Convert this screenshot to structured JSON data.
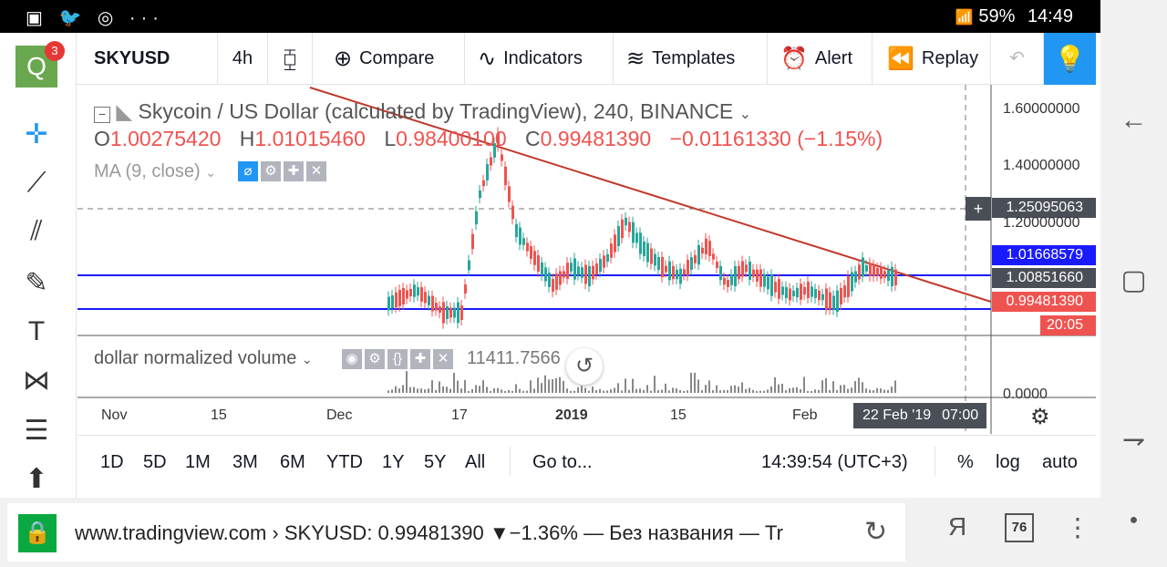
{
  "statusbar": {
    "left_icons": "▣ 🐦 ◎ ···",
    "battery": "59%",
    "time": "14:49",
    "signal": "📶"
  },
  "toolbar": {
    "symbol": "SKYUSD",
    "interval": "4h",
    "compare": "Compare",
    "indicators": "Indicators",
    "templates": "Templates",
    "alert": "Alert",
    "replay": "Replay"
  },
  "logo": {
    "letter": "Q",
    "badge": "3"
  },
  "legend": {
    "title": "Skycoin / US Dollar (calculated by TradingView), 240, BINANCE",
    "o_label": "O",
    "o": "1.00275420",
    "h_label": "H",
    "h": "1.01015460",
    "l_label": "L",
    "l": "0.98400100",
    "c_label": "C",
    "c": "0.99481390",
    "change": "−0.01161330 (−1.15%)",
    "ma": "MA (9, close)",
    "volume_name": "dollar normalized volume",
    "volume_value": "11411.7566"
  },
  "axis": {
    "y_ticks": [
      "1.60000000",
      "1.40000000",
      "1.20000000",
      "0.0000"
    ],
    "x_ticks": [
      "Nov",
      "15",
      "Dec",
      "17",
      "2019",
      "15",
      "Feb"
    ],
    "crosshair_price": "1.25095063",
    "price_blue": "1.01668579",
    "price_grey": "1.00851660",
    "price_red": "0.99481390",
    "countdown": "20:05",
    "crosshair_date": "22 Feb '19",
    "crosshair_time": "07:00"
  },
  "rangebar": {
    "ranges": [
      "1D",
      "5D",
      "1M",
      "3M",
      "6M",
      "YTD",
      "1Y",
      "5Y",
      "All"
    ],
    "goto": "Go to...",
    "clock": "14:39:54 (UTC+3)",
    "percent": "%",
    "log": "log",
    "auto": "auto"
  },
  "browser": {
    "url": "www.tradingview.com › SKYUSD: 0.99481390 ▼−1.36% — Без названия — Tr",
    "ya": "Я",
    "tab_count": "76"
  },
  "colors": {
    "accent": "#2196f3",
    "down": "#ef5350",
    "up": "#26a69a",
    "trend": "#c0392b",
    "level": "#1a1aff"
  }
}
